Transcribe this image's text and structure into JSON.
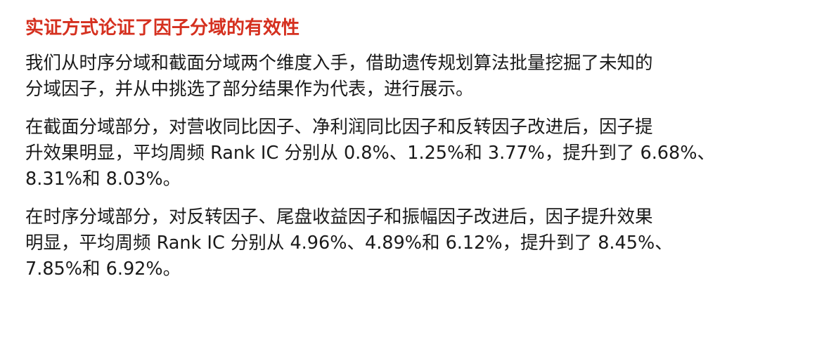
{
  "heading": "实证方式论证了因子分域的有效性",
  "colors": {
    "heading": "#d5301f",
    "body_text": "#1a1a1a",
    "background": "#ffffff"
  },
  "paragraphs": [
    {
      "lines": [
        "我们从时序分域和截面分域两个维度入手，借助遗传规划算法批量挖掘了未知的",
        "分域因子，并从中挑选了部分结果作为代表，进行展示。"
      ]
    },
    {
      "lines": [
        "在截面分域部分，对营收同比因子、净利润同比因子和反转因子改进后，因子提",
        "升效果明显，平均周频 Rank IC 分别从 0.8%、1.25%和 3.77%，提升到了 6.68%、",
        "8.31%和 8.03%。"
      ]
    },
    {
      "lines": [
        "在时序分域部分，对反转因子、尾盘收益因子和振幅因子改进后，因子提升效果",
        "明显，平均周频 Rank IC 分别从 4.96%、4.89%和 6.12%，提升到了 8.45%、",
        "7.85%和 6.92%。"
      ]
    }
  ]
}
